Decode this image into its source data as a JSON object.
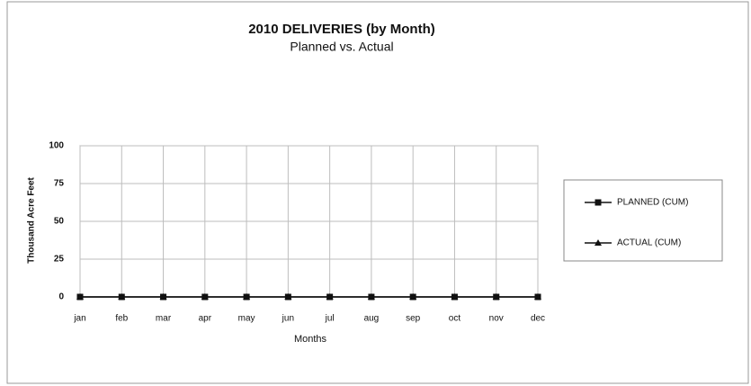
{
  "chart_data": {
    "type": "line",
    "title": "2010 DELIVERIES (by Month)",
    "subtitle": "Planned vs. Actual",
    "xlabel": "Months",
    "ylabel": "Thousand Acre Feet",
    "categories": [
      "jan",
      "feb",
      "mar",
      "apr",
      "may",
      "jun",
      "jul",
      "aug",
      "sep",
      "oct",
      "nov",
      "dec"
    ],
    "series": [
      {
        "name": "PLANNED (CUM)",
        "color": "#111111",
        "marker": "square",
        "values": [
          0,
          0,
          0,
          0,
          0,
          0,
          0,
          0,
          0,
          0,
          0,
          0
        ]
      },
      {
        "name": "ACTUAL (CUM)",
        "color": "#111111",
        "marker": "triangle",
        "values": [
          0,
          0,
          0,
          0,
          0,
          0,
          0,
          0,
          0,
          0,
          0,
          0
        ]
      }
    ],
    "ylim": [
      0,
      100
    ],
    "yticks": [
      0,
      25,
      50,
      75,
      100
    ],
    "grid": true,
    "legend": "right"
  }
}
